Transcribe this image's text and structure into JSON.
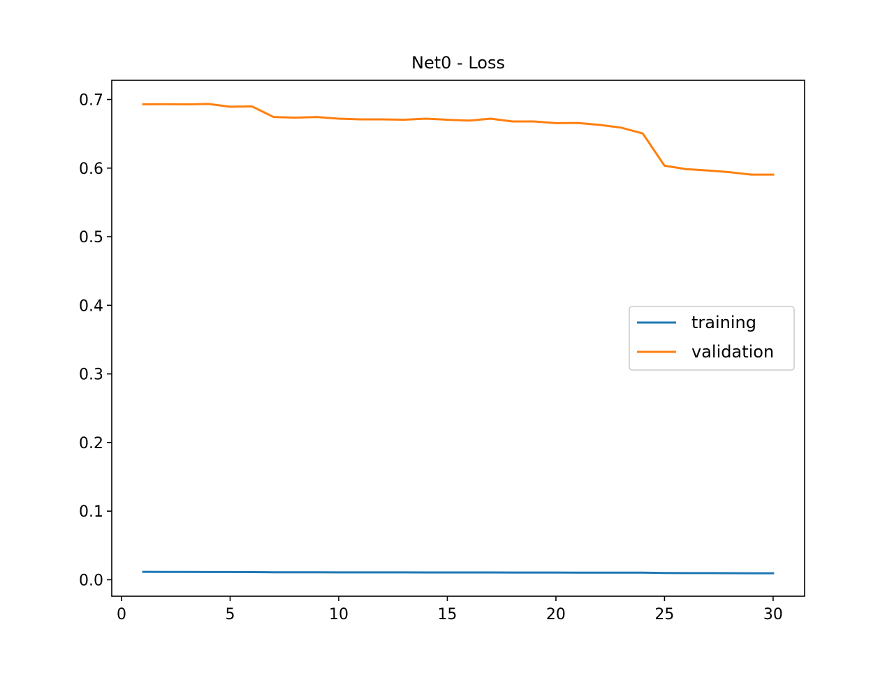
{
  "chart_data": {
    "type": "line",
    "title": "Net0 - Loss",
    "xlabel": "",
    "ylabel": "",
    "xlim": [
      -0.45,
      31.45
    ],
    "ylim": [
      -0.024,
      0.728
    ],
    "xticks": [
      0,
      5,
      10,
      15,
      20,
      25,
      30
    ],
    "xtick_labels": [
      "0",
      "5",
      "10",
      "15",
      "20",
      "25",
      "30"
    ],
    "yticks": [
      0.0,
      0.1,
      0.2,
      0.3,
      0.4,
      0.5,
      0.6,
      0.7
    ],
    "ytick_labels": [
      "0.0",
      "0.1",
      "0.2",
      "0.3",
      "0.4",
      "0.5",
      "0.6",
      "0.7"
    ],
    "grid": false,
    "legend_position": "center right",
    "x": [
      1,
      2,
      3,
      4,
      5,
      6,
      7,
      8,
      9,
      10,
      11,
      12,
      13,
      14,
      15,
      16,
      17,
      18,
      19,
      20,
      21,
      22,
      23,
      24,
      25,
      26,
      27,
      28,
      29,
      30
    ],
    "series": [
      {
        "name": "training",
        "color": "#1f77b4",
        "values": [
          0.0115,
          0.0114,
          0.0113,
          0.0112,
          0.0112,
          0.0111,
          0.0109,
          0.0108,
          0.0108,
          0.0107,
          0.0107,
          0.0107,
          0.0107,
          0.0106,
          0.0106,
          0.0106,
          0.0106,
          0.0105,
          0.0105,
          0.0105,
          0.0104,
          0.0104,
          0.0104,
          0.0103,
          0.0099,
          0.0097,
          0.0097,
          0.0096,
          0.0095,
          0.0095
        ]
      },
      {
        "name": "validation",
        "color": "#ff7f0e",
        "values": [
          0.693,
          0.6932,
          0.6929,
          0.6935,
          0.6895,
          0.69,
          0.6745,
          0.6735,
          0.6745,
          0.672,
          0.671,
          0.671,
          0.6705,
          0.672,
          0.6705,
          0.6692,
          0.672,
          0.668,
          0.668,
          0.6655,
          0.6658,
          0.663,
          0.659,
          0.6505,
          0.6035,
          0.5985,
          0.5965,
          0.594,
          0.5905,
          0.5905
        ]
      }
    ]
  }
}
